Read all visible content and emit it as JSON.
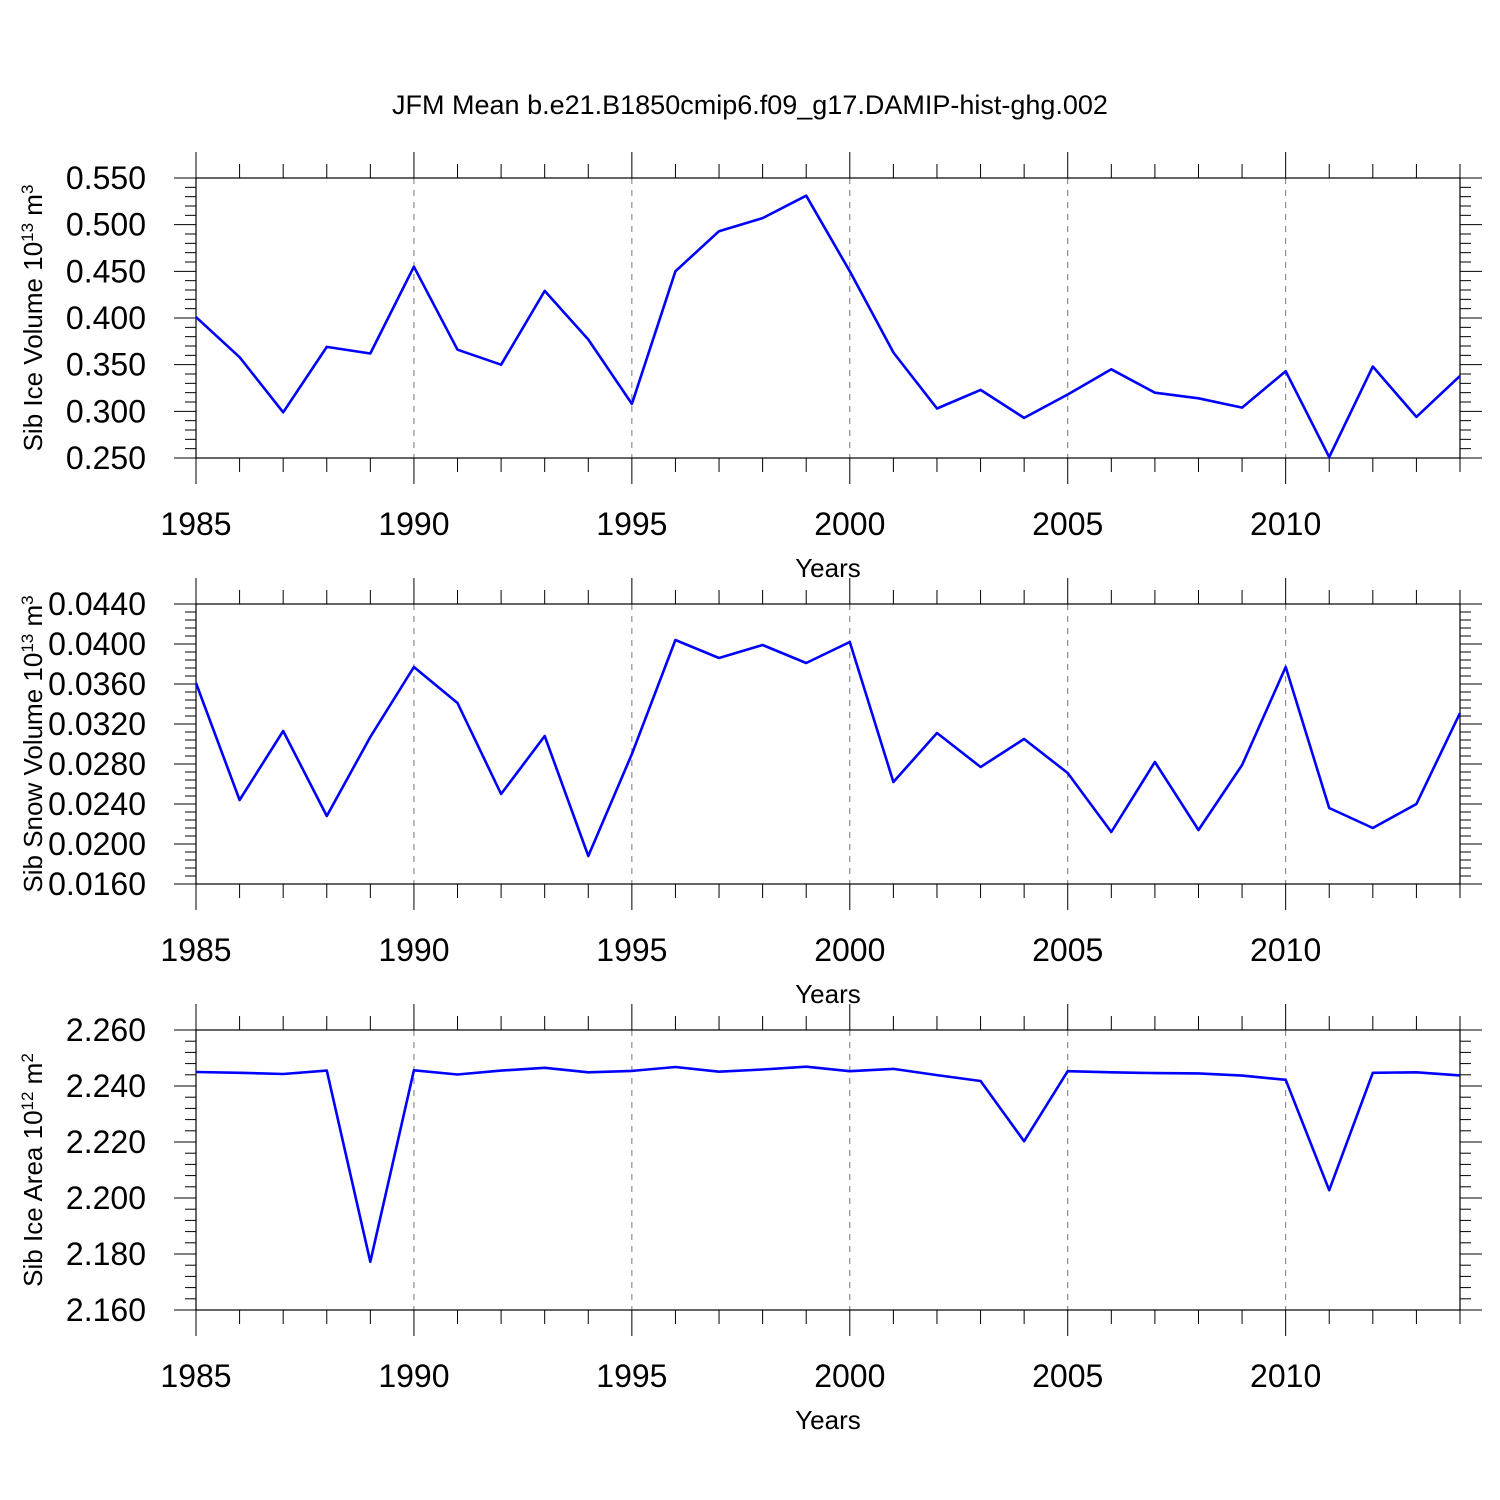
{
  "title": "JFM Mean b.e21.B1850cmip6.f09_g17.DAMIP-hist-ghg.002",
  "chart_data": [
    {
      "type": "line",
      "ylabel_main": "Sib Ice Volume 10",
      "ylabel_exp": "13",
      "ylabel_unit": " m",
      "ylabel_unit_exp": "3",
      "xlabel": "Years",
      "xlim": [
        1985,
        2014
      ],
      "ylim": [
        0.25,
        0.55
      ],
      "y_ticks": [
        "0.550",
        "0.500",
        "0.450",
        "0.400",
        "0.350",
        "0.300",
        "0.250"
      ],
      "x_ticks": [
        "1985",
        "1990",
        "1995",
        "2000",
        "2005",
        "2010"
      ],
      "grid": "vertical dashed at major x ticks",
      "line_color": "#0000ff",
      "x": [
        1985,
        1986,
        1987,
        1988,
        1989,
        1990,
        1991,
        1992,
        1993,
        1994,
        1995,
        1996,
        1997,
        1998,
        1999,
        2000,
        2001,
        2002,
        2003,
        2004,
        2005,
        2006,
        2007,
        2008,
        2009,
        2010,
        2011,
        2012,
        2013,
        2014
      ],
      "y": [
        0.401,
        0.358,
        0.299,
        0.369,
        0.362,
        0.455,
        0.366,
        0.35,
        0.429,
        0.377,
        0.308,
        0.45,
        0.493,
        0.507,
        0.531,
        0.45,
        0.363,
        0.303,
        0.323,
        0.293,
        0.318,
        0.345,
        0.32,
        0.314,
        0.304,
        0.343,
        0.251,
        0.348,
        0.294,
        0.338
      ]
    },
    {
      "type": "line",
      "ylabel_main": "Sib Snow Volume 10",
      "ylabel_exp": "13",
      "ylabel_unit": " m",
      "ylabel_unit_exp": "3",
      "xlabel": "Years",
      "xlim": [
        1985,
        2014
      ],
      "ylim": [
        0.016,
        0.044
      ],
      "y_ticks": [
        "0.0440",
        "0.0400",
        "0.0360",
        "0.0320",
        "0.0280",
        "0.0240",
        "0.0200",
        "0.0160"
      ],
      "x_ticks": [
        "1985",
        "1990",
        "1995",
        "2000",
        "2005",
        "2010"
      ],
      "grid": "vertical dashed at major x ticks",
      "line_color": "#0000ff",
      "x": [
        1985,
        1986,
        1987,
        1988,
        1989,
        1990,
        1991,
        1992,
        1993,
        1994,
        1995,
        1996,
        1997,
        1998,
        1999,
        2000,
        2001,
        2002,
        2003,
        2004,
        2005,
        2006,
        2007,
        2008,
        2009,
        2010,
        2011,
        2012,
        2013,
        2014
      ],
      "y": [
        0.0361,
        0.0244,
        0.0313,
        0.0228,
        0.0307,
        0.0377,
        0.0341,
        0.025,
        0.0308,
        0.0188,
        0.029,
        0.0404,
        0.0386,
        0.0399,
        0.0381,
        0.0402,
        0.0262,
        0.0311,
        0.0277,
        0.0305,
        0.0271,
        0.0212,
        0.0282,
        0.0214,
        0.0279,
        0.0377,
        0.0236,
        0.0216,
        0.024,
        0.0331
      ]
    },
    {
      "type": "line",
      "ylabel_main": "Sib Ice Area 10",
      "ylabel_exp": "12",
      "ylabel_unit": " m",
      "ylabel_unit_exp": "2",
      "xlabel": "Years",
      "xlim": [
        1985,
        2014
      ],
      "ylim": [
        2.16,
        2.26
      ],
      "y_ticks": [
        "2.260",
        "2.240",
        "2.220",
        "2.200",
        "2.180",
        "2.160"
      ],
      "x_ticks": [
        "1985",
        "1990",
        "1995",
        "2000",
        "2005",
        "2010"
      ],
      "grid": "vertical dashed at major x ticks",
      "line_color": "#0000ff",
      "x": [
        1985,
        1986,
        1987,
        1988,
        1989,
        1990,
        1991,
        1992,
        1993,
        1994,
        1995,
        1996,
        1997,
        1998,
        1999,
        2000,
        2001,
        2002,
        2003,
        2004,
        2005,
        2006,
        2007,
        2008,
        2009,
        2010,
        2011,
        2012,
        2013,
        2014
      ],
      "y": [
        2.245,
        2.2447,
        2.2443,
        2.2455,
        2.1772,
        2.2456,
        2.2441,
        2.2455,
        2.2465,
        2.2449,
        2.2454,
        2.2468,
        2.2451,
        2.2459,
        2.2469,
        2.2453,
        2.2461,
        2.2439,
        2.2418,
        2.2203,
        2.2453,
        2.2449,
        2.2446,
        2.2445,
        2.2437,
        2.2422,
        2.2028,
        2.2447,
        2.2449,
        2.2438
      ]
    }
  ]
}
